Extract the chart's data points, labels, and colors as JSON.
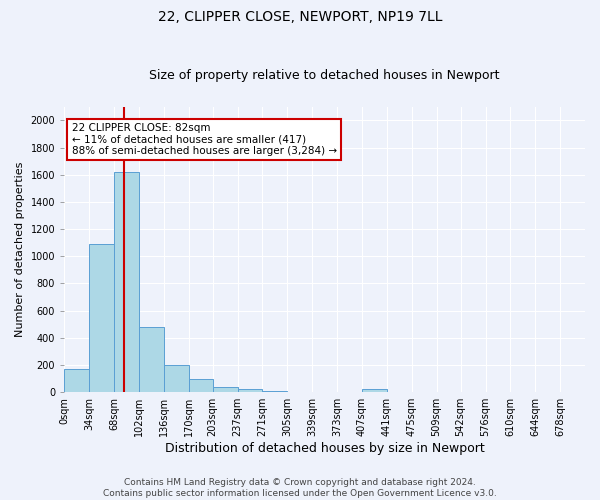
{
  "title1": "22, CLIPPER CLOSE, NEWPORT, NP19 7LL",
  "title2": "Size of property relative to detached houses in Newport",
  "xlabel": "Distribution of detached houses by size in Newport",
  "ylabel": "Number of detached properties",
  "bin_labels": [
    "0sqm",
    "34sqm",
    "68sqm",
    "102sqm",
    "136sqm",
    "170sqm",
    "203sqm",
    "237sqm",
    "271sqm",
    "305sqm",
    "339sqm",
    "373sqm",
    "407sqm",
    "441sqm",
    "475sqm",
    "509sqm",
    "542sqm",
    "576sqm",
    "610sqm",
    "644sqm",
    "678sqm"
  ],
  "bin_edges": [
    0,
    34,
    68,
    102,
    136,
    170,
    203,
    237,
    271,
    305,
    339,
    373,
    407,
    441,
    475,
    509,
    542,
    576,
    610,
    644,
    678
  ],
  "bar_heights": [
    170,
    1090,
    1620,
    480,
    200,
    100,
    40,
    20,
    10,
    0,
    0,
    0,
    20,
    0,
    0,
    0,
    0,
    0,
    0,
    0
  ],
  "bar_color": "#add8e6",
  "bar_edge_color": "#5a9fd4",
  "property_value": 82,
  "vline_color": "#cc0000",
  "annotation_text": "22 CLIPPER CLOSE: 82sqm\n← 11% of detached houses are smaller (417)\n88% of semi-detached houses are larger (3,284) →",
  "annotation_box_facecolor": "#ffffff",
  "annotation_box_edgecolor": "#cc0000",
  "ylim": [
    0,
    2100
  ],
  "yticks": [
    0,
    200,
    400,
    600,
    800,
    1000,
    1200,
    1400,
    1600,
    1800,
    2000
  ],
  "background_color": "#eef2fb",
  "grid_color": "#ffffff",
  "footer_line1": "Contains HM Land Registry data © Crown copyright and database right 2024.",
  "footer_line2": "Contains public sector information licensed under the Open Government Licence v3.0.",
  "title1_fontsize": 10,
  "title2_fontsize": 9,
  "xlabel_fontsize": 9,
  "ylabel_fontsize": 8,
  "tick_fontsize": 7,
  "annotation_fontsize": 7.5,
  "footer_fontsize": 6.5
}
